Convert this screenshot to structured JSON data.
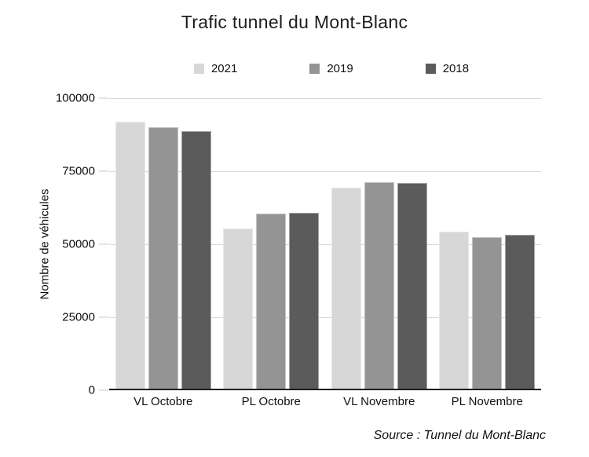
{
  "chart_data": {
    "type": "bar",
    "title": "Trafic tunnel du Mont-Blanc",
    "categories": [
      "VL Octobre",
      "PL Octobre",
      "VL Novembre",
      "PL Novembre"
    ],
    "series": [
      {
        "name": "2021",
        "color": "#d7d7d7",
        "values": [
          92000,
          55500,
          69400,
          54200
        ]
      },
      {
        "name": "2019",
        "color": "#949494",
        "values": [
          90100,
          60400,
          71200,
          52500
        ]
      },
      {
        "name": "2018",
        "color": "#5b5b5b",
        "values": [
          88600,
          60700,
          71000,
          53300
        ]
      }
    ],
    "xlabel": "",
    "ylabel": "Nombre de véhicules",
    "ylim": [
      0,
      100000
    ],
    "yticks": [
      0,
      25000,
      50000,
      75000,
      100000
    ],
    "ytick_labels": [
      "0",
      "25000",
      "50000",
      "75000",
      "100000"
    ],
    "grid": true,
    "legend_position": "top",
    "source": "Source : Tunnel du Mont-Blanc"
  }
}
